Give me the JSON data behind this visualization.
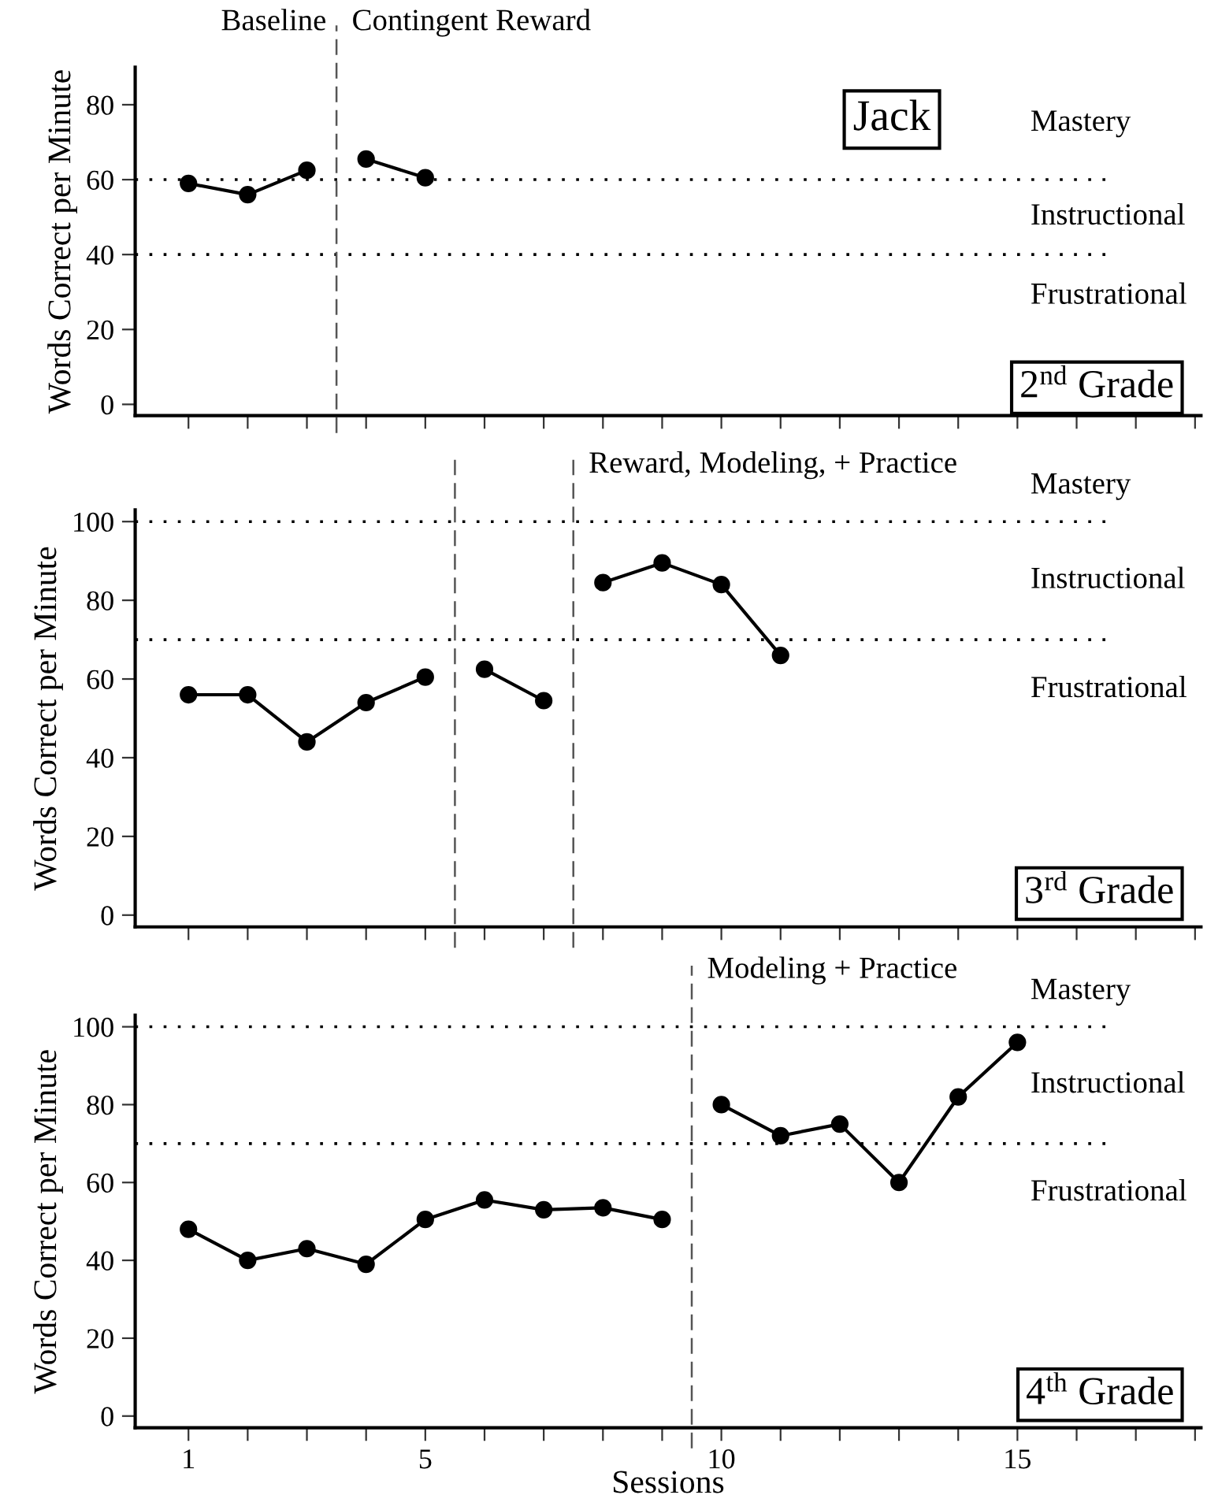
{
  "chart_data": [
    {
      "type": "line",
      "title": "Jack",
      "subtitle": "2$^{nd}$ Grade",
      "ylabel": "Words Correct per Minute",
      "marker": "circle",
      "line_style": "solid",
      "grid": false,
      "tick_labels": "y",
      "xlim": [
        0.1,
        18.1
      ],
      "xticks": [
        {
          "value": 1,
          "label": null
        },
        {
          "value": 2,
          "label": null
        },
        {
          "value": 3,
          "label": null
        },
        {
          "value": 4,
          "label": null
        },
        {
          "value": 5,
          "label": null
        },
        {
          "value": 6,
          "label": null
        },
        {
          "value": 7,
          "label": null
        },
        {
          "value": 8,
          "label": null
        },
        {
          "value": 9,
          "label": null
        },
        {
          "value": 10,
          "label": null
        },
        {
          "value": 11,
          "label": null
        },
        {
          "value": 12,
          "label": null
        },
        {
          "value": 13,
          "label": null
        },
        {
          "value": 14,
          "label": null
        },
        {
          "value": 15,
          "label": null
        },
        {
          "value": 16,
          "label": null
        },
        {
          "value": 17,
          "label": null
        },
        {
          "value": 18,
          "label": null
        }
      ],
      "ylim": [
        -3,
        90
      ],
      "yticks": [
        0,
        20,
        40,
        60,
        80
      ],
      "series": [
        {
          "color": "#000000",
          "x": [
            1,
            2,
            3
          ],
          "values": [
            59,
            56,
            62.5
          ]
        },
        {
          "color": "#000000",
          "x": [
            4,
            5
          ],
          "values": [
            65.5,
            60.5
          ]
        }
      ],
      "ref_lines": [
        {
          "axis": "y",
          "value": 60,
          "line_style": "dotted",
          "color": "#000000"
        },
        {
          "axis": "y",
          "value": 40,
          "line_style": "dotted",
          "color": "#000000"
        },
        {
          "axis": "x",
          "value": 3.5,
          "line_style": "dashed",
          "color": "#555555",
          "label": "Contingent Reward"
        }
      ],
      "annotations": [
        "Baseline",
        "Mastery",
        "Instructional",
        "Frustrational"
      ]
    },
    {
      "type": "line",
      "subtitle": "3$^{rd}$ Grade",
      "ylabel": "Words Correct per Minute",
      "marker": "circle",
      "line_style": "solid",
      "grid": false,
      "tick_labels": "y",
      "xlim": [
        0.1,
        18.1
      ],
      "xticks": [
        {
          "value": 1,
          "label": null
        },
        {
          "value": 2,
          "label": null
        },
        {
          "value": 3,
          "label": null
        },
        {
          "value": 4,
          "label": null
        },
        {
          "value": 5,
          "label": null
        },
        {
          "value": 6,
          "label": null
        },
        {
          "value": 7,
          "label": null
        },
        {
          "value": 8,
          "label": null
        },
        {
          "value": 9,
          "label": null
        },
        {
          "value": 10,
          "label": null
        },
        {
          "value": 11,
          "label": null
        },
        {
          "value": 12,
          "label": null
        },
        {
          "value": 13,
          "label": null
        },
        {
          "value": 14,
          "label": null
        },
        {
          "value": 15,
          "label": null
        },
        {
          "value": 16,
          "label": null
        },
        {
          "value": 17,
          "label": null
        },
        {
          "value": 18,
          "label": null
        }
      ],
      "ylim": [
        -3,
        103
      ],
      "yticks": [
        0,
        20,
        40,
        60,
        80,
        100
      ],
      "series": [
        {
          "color": "#000000",
          "x": [
            1,
            2,
            3,
            4,
            5
          ],
          "values": [
            56,
            56,
            44,
            54,
            60.5
          ]
        },
        {
          "color": "#000000",
          "x": [
            6,
            7
          ],
          "values": [
            62.5,
            54.5
          ]
        },
        {
          "color": "#000000",
          "x": [
            8,
            9,
            10,
            11
          ],
          "values": [
            84.5,
            89.5,
            84,
            66
          ]
        }
      ],
      "ref_lines": [
        {
          "axis": "y",
          "value": 100,
          "line_style": "dotted",
          "color": "#000000"
        },
        {
          "axis": "y",
          "value": 70,
          "line_style": "dotted",
          "color": "#000000"
        },
        {
          "axis": "x",
          "value": 5.5,
          "line_style": "dashed",
          "color": "#555555"
        },
        {
          "axis": "x",
          "value": 7.5,
          "line_style": "dashed",
          "color": "#555555",
          "label": "Reward, Modeling, + Practice"
        }
      ],
      "annotations": [
        "Mastery",
        "Instructional",
        "Frustrational"
      ]
    },
    {
      "type": "line",
      "subtitle": "4$^{th}$ Grade",
      "xlabel": "Sessions",
      "ylabel": "Words Correct per Minute",
      "marker": "circle",
      "line_style": "solid",
      "grid": false,
      "xlim": [
        0.1,
        18.1
      ],
      "xticks": [
        1,
        {
          "value": 2,
          "label": null
        },
        {
          "value": 3,
          "label": null
        },
        {
          "value": 4,
          "label": null
        },
        5,
        {
          "value": 6,
          "label": null
        },
        {
          "value": 7,
          "label": null
        },
        {
          "value": 8,
          "label": null
        },
        {
          "value": 9,
          "label": null
        },
        10,
        {
          "value": 11,
          "label": null
        },
        {
          "value": 12,
          "label": null
        },
        {
          "value": 13,
          "label": null
        },
        {
          "value": 14,
          "label": null
        },
        15,
        {
          "value": 16,
          "label": null
        },
        {
          "value": 17,
          "label": null
        },
        {
          "value": 18,
          "label": null
        }
      ],
      "ylim": [
        -3,
        103
      ],
      "yticks": [
        0,
        20,
        40,
        60,
        80,
        100
      ],
      "series": [
        {
          "color": "#000000",
          "x": [
            1,
            2,
            3,
            4,
            5,
            6,
            7,
            8,
            9
          ],
          "values": [
            48,
            40,
            43,
            39,
            50.5,
            55.5,
            53,
            53.5,
            50.5
          ]
        },
        {
          "color": "#000000",
          "x": [
            10,
            11,
            12,
            13,
            14,
            15
          ],
          "values": [
            80,
            72,
            75,
            60,
            82,
            96
          ]
        }
      ],
      "ref_lines": [
        {
          "axis": "y",
          "value": 100,
          "line_style": "dotted",
          "color": "#000000"
        },
        {
          "axis": "y",
          "value": 70,
          "line_style": "dotted",
          "color": "#000000"
        },
        {
          "axis": "x",
          "value": 9.5,
          "line_style": "dashed",
          "color": "#555555",
          "label": "Modeling + Practice"
        }
      ],
      "annotations": [
        "Mastery",
        "Instructional",
        "Frustrational"
      ]
    }
  ]
}
